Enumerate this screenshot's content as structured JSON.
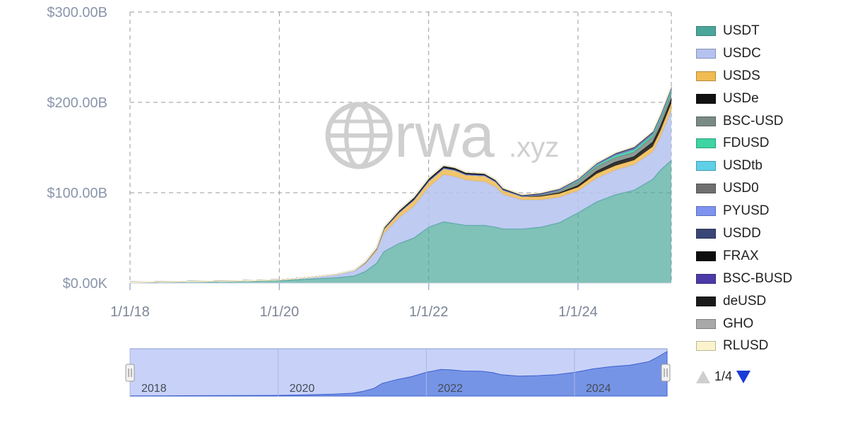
{
  "chart_data": {
    "type": "area",
    "stacked": true,
    "watermark": {
      "brand": "rwa",
      "suffix": ".xyz"
    },
    "y_axis": {
      "ticks": [
        {
          "value": 0,
          "label": "$0.00K"
        },
        {
          "value": 100,
          "label": "$100.00B"
        },
        {
          "value": 200,
          "label": "$200.00B"
        },
        {
          "value": 300,
          "label": "$300.00B"
        }
      ],
      "ylim": [
        0,
        300
      ],
      "unit": "billions USD"
    },
    "x_axis": {
      "ticks": [
        {
          "value": 2018.0,
          "label": "1/1/18"
        },
        {
          "value": 2020.0,
          "label": "1/1/20"
        },
        {
          "value": 2022.0,
          "label": "1/1/22"
        },
        {
          "value": 2024.0,
          "label": "1/1/24"
        }
      ],
      "xlim": [
        2018.0,
        2025.25
      ]
    },
    "grid": true,
    "legend_position": "right",
    "x": [
      2018.0,
      2018.5,
      2019.0,
      2019.5,
      2020.0,
      2020.25,
      2020.5,
      2020.75,
      2021.0,
      2021.15,
      2021.3,
      2021.4,
      2021.6,
      2021.8,
      2022.0,
      2022.2,
      2022.35,
      2022.5,
      2022.75,
      2022.9,
      2023.0,
      2023.25,
      2023.5,
      2023.75,
      2024.0,
      2024.25,
      2024.5,
      2024.75,
      2025.0,
      2025.1,
      2025.25
    ],
    "series": [
      {
        "name": "USDT",
        "color": "#4aa69a",
        "values": [
          1,
          1.5,
          2,
          2.5,
          3,
          4,
          5,
          6,
          8,
          13,
          22,
          35,
          44,
          50,
          62,
          68,
          66,
          64,
          64,
          62,
          60,
          60,
          62,
          67,
          78,
          90,
          98,
          103,
          115,
          125,
          136
        ]
      },
      {
        "name": "USDC",
        "color": "#b5c2f0",
        "values": [
          0,
          0,
          0,
          0,
          0.5,
          1,
          2,
          3,
          5,
          8,
          13,
          20,
          28,
          35,
          44,
          52,
          52,
          50,
          48,
          44,
          38,
          32,
          30,
          28,
          24,
          26,
          27,
          28,
          30,
          36,
          55
        ]
      },
      {
        "name": "USDS",
        "color": "#f0bb52",
        "values": [
          0,
          0,
          0,
          0,
          0,
          0,
          0,
          0.5,
          1,
          2,
          3,
          5,
          6,
          7,
          7,
          7,
          7,
          6,
          7,
          6,
          5,
          4,
          4,
          4,
          4,
          5,
          5,
          5,
          6,
          7,
          8
        ]
      },
      {
        "name": "USDe",
        "color": "#111111",
        "values": [
          0,
          0,
          0,
          0,
          0,
          0,
          0,
          0,
          0,
          0,
          0,
          0,
          0,
          0,
          0,
          0,
          0,
          0,
          0,
          0,
          0,
          0,
          0.5,
          1,
          2,
          3,
          4,
          4,
          5,
          5,
          5
        ]
      },
      {
        "name": "BSC-USD",
        "color": "#7a8a84",
        "values": [
          0,
          0,
          0,
          0,
          0,
          0,
          0,
          0,
          0,
          0,
          0,
          0,
          0,
          0,
          0,
          0,
          0,
          0,
          0,
          0,
          0,
          0,
          1,
          2,
          4,
          5,
          5,
          5,
          6,
          7,
          7
        ]
      },
      {
        "name": "FDUSD",
        "color": "#3ed4a4",
        "values": [
          0,
          0,
          0,
          0,
          0,
          0,
          0,
          0,
          0,
          0,
          0,
          0,
          0,
          0,
          0,
          0,
          0,
          0,
          0,
          0,
          0,
          0,
          0.5,
          1,
          2,
          2,
          2,
          2,
          1.5,
          1.5,
          1.5
        ]
      },
      {
        "name": "USDtb",
        "color": "#5fd0e8",
        "values": [
          0,
          0,
          0,
          0,
          0,
          0,
          0,
          0,
          0,
          0,
          0,
          0,
          0,
          0,
          0,
          0,
          0,
          0,
          0,
          0,
          0,
          0,
          0,
          0,
          0,
          0,
          0.3,
          0.5,
          0.8,
          1,
          1.2
        ]
      },
      {
        "name": "USD0",
        "color": "#6f6f6f",
        "values": [
          0,
          0,
          0,
          0,
          0,
          0,
          0,
          0,
          0,
          0,
          0,
          0,
          0,
          0,
          0,
          0,
          0,
          0,
          0,
          0,
          0,
          0,
          0,
          0,
          0,
          0.3,
          0.6,
          1,
          1.2,
          1.3,
          1.4
        ]
      },
      {
        "name": "PYUSD",
        "color": "#7e93f0",
        "values": [
          0,
          0,
          0,
          0,
          0,
          0,
          0,
          0,
          0,
          0,
          0,
          0,
          0,
          0,
          0,
          0,
          0,
          0,
          0,
          0,
          0,
          0,
          0.2,
          0.3,
          0.4,
          0.5,
          0.7,
          0.8,
          0.8,
          0.9,
          0.9
        ]
      },
      {
        "name": "USDD",
        "color": "#3a4675",
        "values": [
          0,
          0,
          0,
          0,
          0,
          0,
          0,
          0,
          0,
          0,
          0,
          0.3,
          0.5,
          0.6,
          0.7,
          0.7,
          0.7,
          0.7,
          0.7,
          0.7,
          0.7,
          0.7,
          0.7,
          0.7,
          0.7,
          0.7,
          0.7,
          0.7,
          0.7,
          0.7,
          0.7
        ]
      },
      {
        "name": "FRAX",
        "color": "#0d0d0d",
        "values": [
          0,
          0,
          0,
          0,
          0,
          0,
          0,
          0,
          0,
          0.2,
          0.5,
          1,
          1.5,
          2,
          2,
          2,
          1.8,
          1.5,
          1.3,
          1.2,
          1,
          0.8,
          0.7,
          0.6,
          0.5,
          0.4,
          0.4,
          0.4,
          0.4,
          0.4,
          0.4
        ]
      },
      {
        "name": "BSC-BUSD",
        "color": "#4b3aa8",
        "values": [
          0,
          0,
          0,
          0,
          0,
          0,
          0,
          0,
          0,
          0.2,
          0.3,
          0.4,
          0.5,
          0.5,
          0.5,
          0.5,
          0.5,
          0.5,
          0.5,
          0.5,
          0.4,
          0.3,
          0.2,
          0.1,
          0.1,
          0.1,
          0.1,
          0.1,
          0.1,
          0.1,
          0.1
        ]
      },
      {
        "name": "deUSD",
        "color": "#1a1a1a",
        "values": [
          0,
          0,
          0,
          0,
          0,
          0,
          0,
          0,
          0,
          0,
          0,
          0,
          0,
          0,
          0,
          0,
          0,
          0,
          0,
          0,
          0,
          0,
          0,
          0,
          0,
          0.1,
          0.2,
          0.3,
          0.3,
          0.3,
          0.3
        ]
      },
      {
        "name": "GHO",
        "color": "#a8a8a8",
        "values": [
          0,
          0,
          0,
          0,
          0,
          0,
          0,
          0,
          0,
          0,
          0,
          0,
          0,
          0,
          0,
          0,
          0,
          0,
          0,
          0,
          0,
          0,
          0.1,
          0.1,
          0.1,
          0.1,
          0.2,
          0.2,
          0.2,
          0.2,
          0.2
        ]
      },
      {
        "name": "RLUSD",
        "color": "#fbf3cc",
        "values": [
          0,
          0,
          0,
          0,
          0,
          0,
          0,
          0,
          0,
          0,
          0,
          0,
          0,
          0,
          0,
          0,
          0,
          0,
          0,
          0,
          0,
          0,
          0,
          0,
          0,
          0,
          0,
          0,
          0.1,
          0.1,
          0.1
        ]
      }
    ],
    "navigator": {
      "ticks": [
        "2018",
        "2020",
        "2022",
        "2024"
      ],
      "fill_color": "#5b7fe0",
      "background": "#c8d2f8"
    }
  },
  "legend_pager": {
    "label": "1/4"
  }
}
